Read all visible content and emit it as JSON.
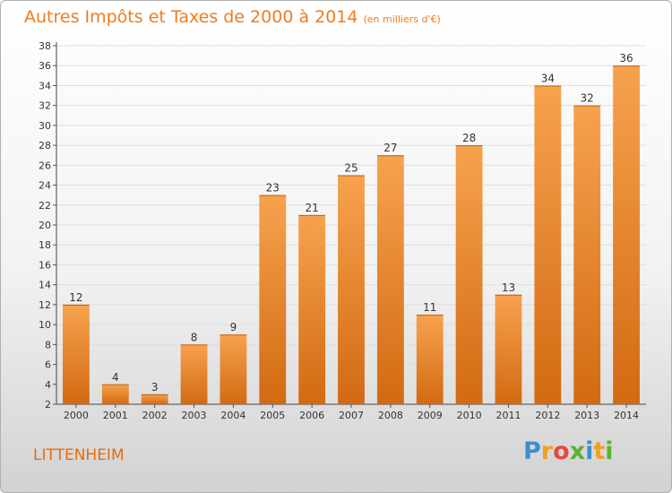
{
  "title": "Autres Impôts et Taxes de 2000 à 2014",
  "title_unit": "(en milliers d'€)",
  "city": "LITTENHEIM",
  "logo": {
    "letters": [
      {
        "ch": "P",
        "color": "#3a8fd0"
      },
      {
        "ch": "r",
        "color": "#f0a020"
      },
      {
        "ch": "o",
        "color": "#e24b3c"
      },
      {
        "ch": "x",
        "color": "#5ab233"
      },
      {
        "ch": "i",
        "color": "#3a8fd0"
      },
      {
        "ch": "t",
        "color": "#f0a020"
      },
      {
        "ch": "i",
        "color": "#5ab233"
      }
    ]
  },
  "colors": {
    "bar_top": "#f7a24e",
    "bar_bottom": "#d26a12",
    "accent": "#f07c1e"
  },
  "chart_data": {
    "type": "bar",
    "categories": [
      "2000",
      "2001",
      "2002",
      "2003",
      "2004",
      "2005",
      "2006",
      "2007",
      "2008",
      "2009",
      "2010",
      "2011",
      "2012",
      "2013",
      "2014"
    ],
    "values": [
      12,
      4,
      3,
      8,
      9,
      23,
      21,
      25,
      27,
      11,
      28,
      13,
      34,
      32,
      36
    ],
    "ylim": [
      2,
      38
    ],
    "yticks": [
      2,
      4,
      6,
      8,
      10,
      12,
      14,
      16,
      18,
      20,
      22,
      24,
      26,
      28,
      30,
      32,
      34,
      36,
      38
    ],
    "grid": true
  }
}
